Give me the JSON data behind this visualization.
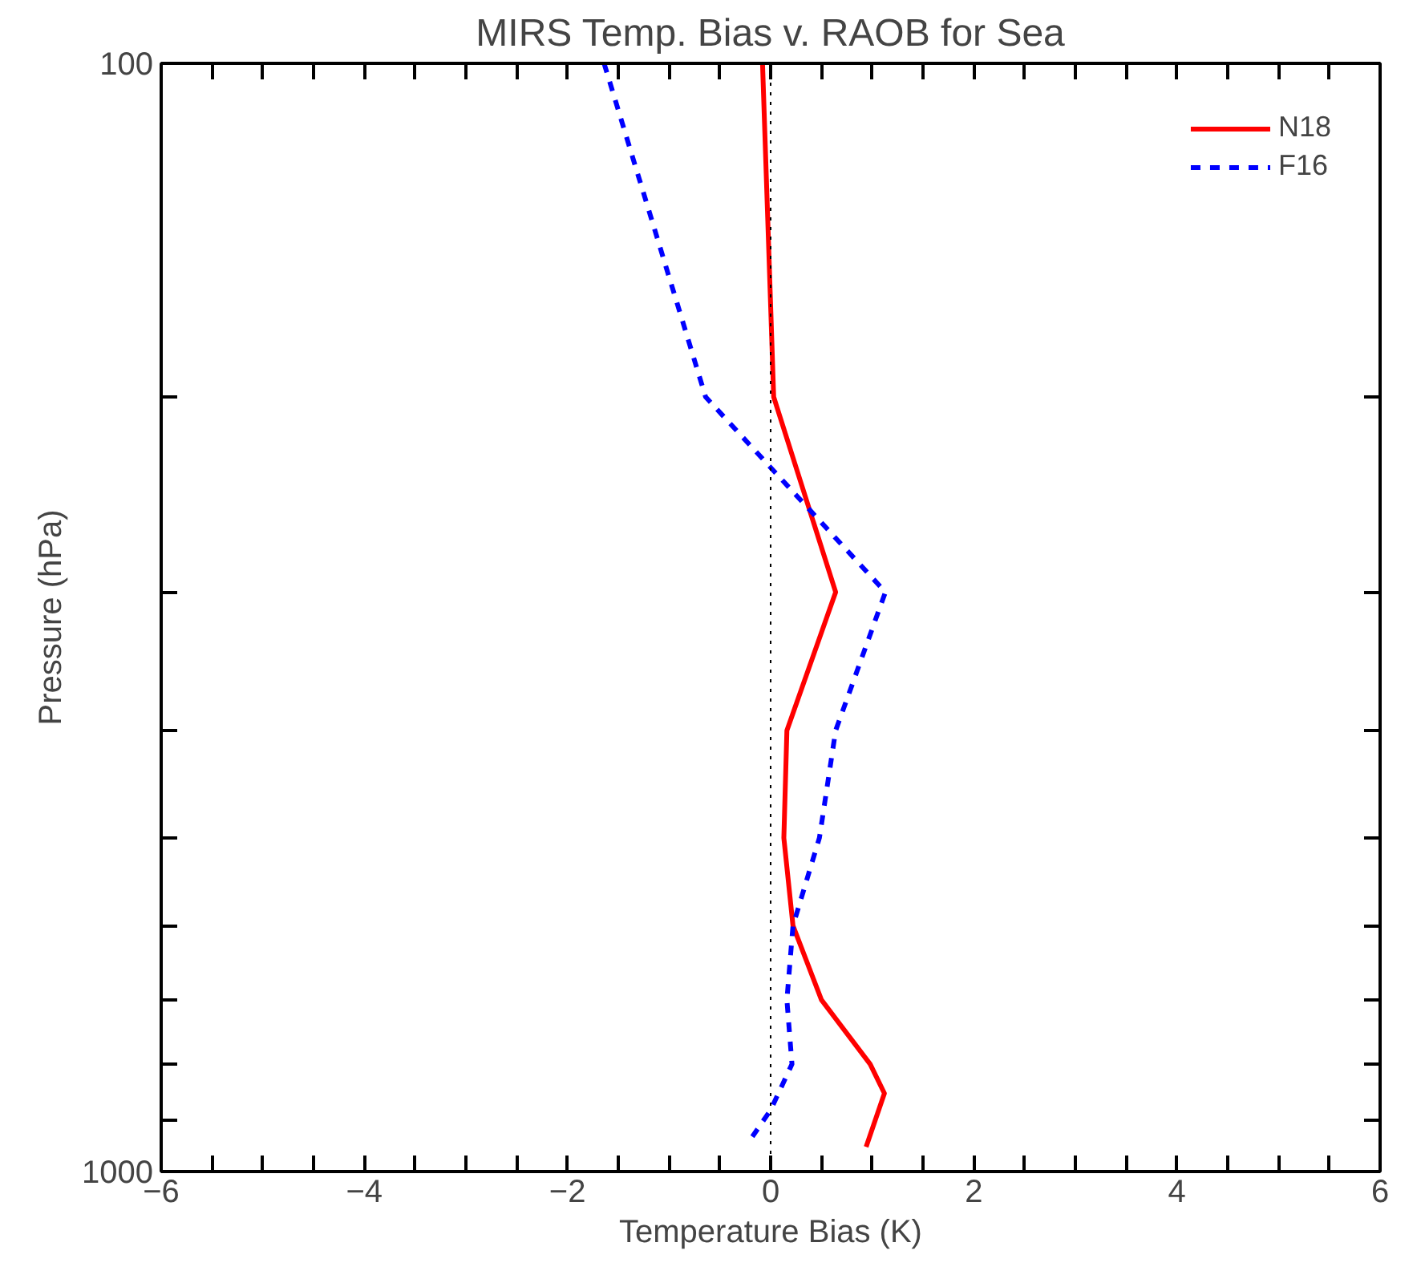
{
  "chart_data": {
    "type": "line",
    "title": "MIRS Temp. Bias v. RAOB for Sea",
    "xlabel": "Temperature Bias (K)",
    "ylabel": "Pressure (hPa)",
    "log": "y",
    "xlim": [
      -6,
      6
    ],
    "ylim": [
      1000,
      100
    ],
    "xticks": [
      -6,
      {
        "value": -5.5,
        "label": null
      },
      {
        "value": -5,
        "label": null
      },
      {
        "value": -4.5,
        "label": null
      },
      -4,
      {
        "value": -3.5,
        "label": null
      },
      {
        "value": -3,
        "label": null
      },
      {
        "value": -2.5,
        "label": null
      },
      -2,
      {
        "value": -1.5,
        "label": null
      },
      {
        "value": -1,
        "label": null
      },
      {
        "value": -0.5,
        "label": null
      },
      0,
      {
        "value": 0.5,
        "label": null
      },
      {
        "value": 1,
        "label": null
      },
      {
        "value": 1.5,
        "label": null
      },
      2,
      {
        "value": 2.5,
        "label": null
      },
      {
        "value": 3,
        "label": null
      },
      {
        "value": 3.5,
        "label": null
      },
      4,
      {
        "value": 4.5,
        "label": null
      },
      {
        "value": 5,
        "label": null
      },
      {
        "value": 5.5,
        "label": null
      },
      6
    ],
    "yticks": [
      100,
      {
        "value": 200,
        "label": null
      },
      {
        "value": 300,
        "label": null
      },
      {
        "value": 400,
        "label": null
      },
      {
        "value": 500,
        "label": null
      },
      {
        "value": 600,
        "label": null
      },
      {
        "value": 700,
        "label": null
      },
      {
        "value": 800,
        "label": null
      },
      {
        "value": 900,
        "label": null
      },
      1000
    ],
    "grid": false,
    "legend": "top right",
    "ref_lines": [
      {
        "axis": "x",
        "value": 0,
        "color": "#000000",
        "line_style": "dotted"
      }
    ],
    "series": [
      {
        "name": "N18",
        "color": "#ff0000",
        "line_style": "solid",
        "x": [
          -0.08,
          0.03,
          0.64,
          0.16,
          0.13,
          0.22,
          0.5,
          0.98,
          1.12,
          0.94
        ],
        "values": [
          100,
          200,
          300,
          400,
          500,
          600,
          700,
          800,
          850,
          950
        ]
      },
      {
        "name": "F16",
        "color": "#0000ff",
        "line_style": "dashed",
        "x": [
          -1.64,
          -0.64,
          1.13,
          0.64,
          0.48,
          0.22,
          0.16,
          0.21,
          0.0,
          -0.18
        ],
        "values": [
          100,
          200,
          300,
          400,
          500,
          600,
          700,
          800,
          880,
          930
        ]
      }
    ]
  }
}
